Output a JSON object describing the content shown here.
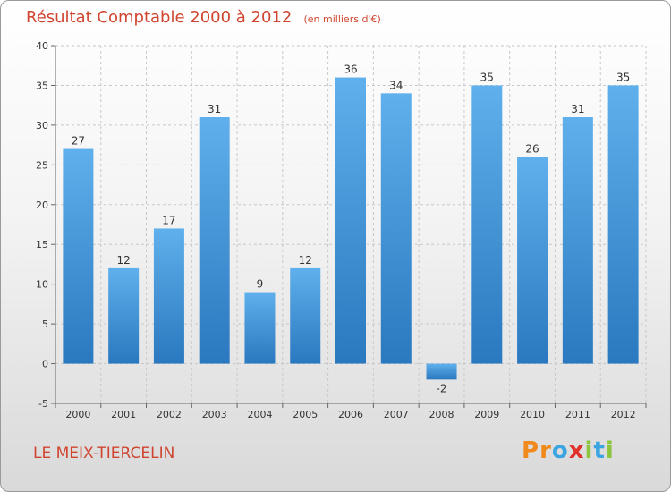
{
  "chart_data": {
    "type": "bar",
    "title": "Résultat Comptable 2000 à 2012",
    "unit_label": "(en milliers d'€)",
    "categories": [
      "2000",
      "2001",
      "2002",
      "2003",
      "2004",
      "2005",
      "2006",
      "2007",
      "2008",
      "2009",
      "2010",
      "2011",
      "2012"
    ],
    "values": [
      27,
      12,
      17,
      31,
      9,
      12,
      36,
      34,
      -2,
      35,
      26,
      31,
      35
    ],
    "ylim": [
      -5,
      40
    ],
    "yticks": [
      -5,
      0,
      5,
      10,
      15,
      20,
      25,
      30,
      35,
      40
    ],
    "grid": true,
    "xlabel": "",
    "ylabel": "",
    "bar_color": "#3a8fd6"
  },
  "commune": "LE MEIX-TIERCELIN",
  "logo": {
    "letters": [
      {
        "char": "P",
        "color": "#f08a1c"
      },
      {
        "char": "r",
        "color": "#f08a1c"
      },
      {
        "char": "o",
        "color": "#3aa5e0"
      },
      {
        "char": "x",
        "color": "#e0312b"
      },
      {
        "char": "i",
        "color": "#8cc63f"
      },
      {
        "char": "t",
        "color": "#3aa5e0"
      },
      {
        "char": "i",
        "color": "#8cc63f"
      }
    ]
  }
}
